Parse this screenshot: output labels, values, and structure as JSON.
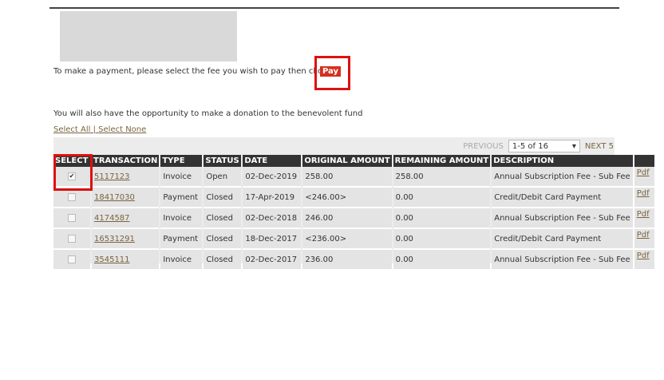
{
  "instructions": {
    "payment_text": "To make a payment, please select the fee you wish to pay then click",
    "pay_label": "Pay",
    "donation_text": "You will also have the opportunity to make a donation to the benevolent fund"
  },
  "selection_links": {
    "select_all": "Select All",
    "separator": " | ",
    "select_none": "Select None"
  },
  "pagination": {
    "previous": "PREVIOUS",
    "range": "1-5 of 16",
    "next": "NEXT 5"
  },
  "table": {
    "headers": [
      "SELECT",
      "TRANSACTION",
      "TYPE",
      "STATUS",
      "DATE",
      "ORIGINAL AMOUNT",
      "REMAINING AMOUNT",
      "DESCRIPTION",
      ""
    ],
    "rows": [
      {
        "checked": true,
        "transaction": "5117123",
        "type": "Invoice",
        "status": "Open",
        "date": "02-Dec-2019",
        "original": "258.00",
        "remaining": "258.00",
        "description": "Annual Subscription Fee - Sub Fee",
        "pdf": "Pdf"
      },
      {
        "checked": false,
        "transaction": "18417030",
        "type": "Payment",
        "status": "Closed",
        "date": "17-Apr-2019",
        "original": "<246.00>",
        "remaining": "0.00",
        "description": "Credit/Debit Card Payment",
        "pdf": "Pdf"
      },
      {
        "checked": false,
        "transaction": "4174587",
        "type": "Invoice",
        "status": "Closed",
        "date": "02-Dec-2018",
        "original": "246.00",
        "remaining": "0.00",
        "description": "Annual Subscription Fee - Sub Fee",
        "pdf": "Pdf"
      },
      {
        "checked": false,
        "transaction": "16531291",
        "type": "Payment",
        "status": "Closed",
        "date": "18-Dec-2017",
        "original": "<236.00>",
        "remaining": "0.00",
        "description": "Credit/Debit Card Payment",
        "pdf": "Pdf"
      },
      {
        "checked": false,
        "transaction": "3545111",
        "type": "Invoice",
        "status": "Closed",
        "date": "02-Dec-2017",
        "original": "236.00",
        "remaining": "0.00",
        "description": "Annual Subscription Fee - Sub Fee",
        "pdf": "Pdf"
      }
    ]
  },
  "colors": {
    "pay_button": "#d4301f",
    "highlight": "#dd1111",
    "header_bg": "#333333",
    "link": "#7a6440"
  }
}
